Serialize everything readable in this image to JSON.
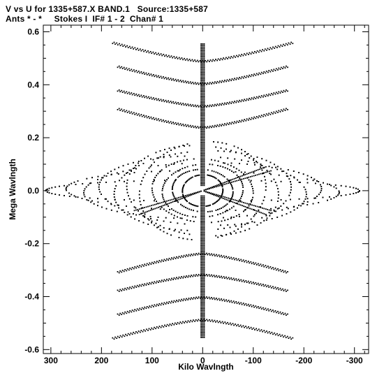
{
  "header": {
    "line1": "V vs U for 1335+587.X BAND.1   Source:1335+587",
    "line2": "Ants * - *     Stokes I  IF# 1 - 2  Chan# 1"
  },
  "chart_data": {
    "type": "scatter",
    "title": "V vs U for 1335+587.X BAND.1   Source:1335+587",
    "subtitle": "Ants * - *     Stokes I  IF# 1 - 2  Chan# 1",
    "xlabel": "Kilo Wavlngth",
    "ylabel": "Mega Wavlngth",
    "x_unit": "kilo-wavelength",
    "y_unit": "mega-wavelength",
    "xlim": [
      315,
      -328
    ],
    "ylim": [
      -0.615,
      0.625
    ],
    "x_reversed": true,
    "grid": false,
    "x_ticks": [
      300,
      200,
      100,
      0,
      -100,
      -200,
      -300
    ],
    "x_tick_labels": [
      "300",
      "200",
      "100",
      "0",
      "-100",
      "-200",
      "-300"
    ],
    "y_ticks": [
      0.6,
      0.4,
      0.2,
      0.0,
      -0.2,
      -0.4,
      -0.6
    ],
    "y_tick_labels": [
      "0.6",
      "0.4",
      "0.2",
      "0.0",
      "-0.2",
      "-0.4",
      "-0.6"
    ],
    "marker": "dot",
    "marker_color": "#000000",
    "uv_tracks": {
      "note": "Earth-rotation-synthesis uv coverage; each ellipse track is mirrored through the origin (u,v) and (-u,-v)",
      "ellipses": [
        {
          "a": 310,
          "b": 0.04,
          "tilt": 0.0
        },
        {
          "a": 270,
          "b": 0.075,
          "tilt": 0.05
        },
        {
          "a": 235,
          "b": 0.105,
          "tilt": -0.05
        },
        {
          "a": 205,
          "b": 0.13,
          "tilt": 0.08
        },
        {
          "a": 175,
          "b": 0.15,
          "tilt": -0.08
        },
        {
          "a": 150,
          "b": 0.17,
          "tilt": 0.1
        },
        {
          "a": 125,
          "b": 0.185,
          "tilt": -0.1
        },
        {
          "a": 100,
          "b": 0.12,
          "tilt": 0.12
        },
        {
          "a": 80,
          "b": 0.1,
          "tilt": -0.12
        },
        {
          "a": 60,
          "b": 0.08,
          "tilt": 0.15
        },
        {
          "a": 40,
          "b": 0.06,
          "tilt": -0.15
        }
      ],
      "chevrons": [
        {
          "v_center": 0.49,
          "v_end": 0.56,
          "u_max": 175
        },
        {
          "v_center": 0.405,
          "v_end": 0.47,
          "u_max": 165
        },
        {
          "v_center": 0.32,
          "v_end": 0.38,
          "u_max": 165
        },
        {
          "v_center": 0.24,
          "v_end": 0.31,
          "u_max": 165
        }
      ],
      "spokes": [
        {
          "u_end": 135,
          "v_end": -0.075
        },
        {
          "u_end": 125,
          "v_end": -0.09
        }
      ],
      "center_column": {
        "v_min": 0.02,
        "v_max": 0.56
      }
    }
  }
}
